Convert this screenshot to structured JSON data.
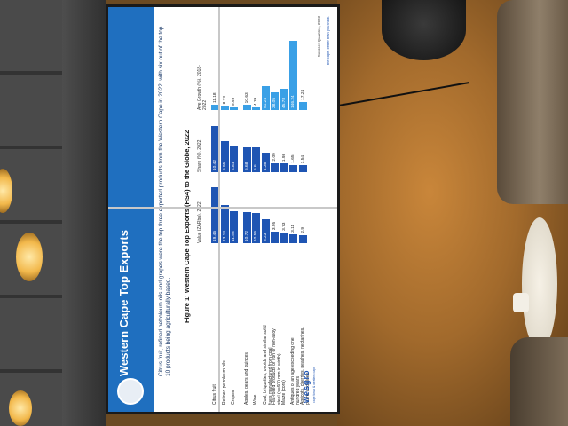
{
  "slide": {
    "title": "Western Cape Top Exports",
    "subtitle": "Citrus fruit, refined petroleum oils and grapes were the top three exported products from the Western Cape in 2022, with six out of the top 10 products being agriculturally based.",
    "figure_title": "Figure 1: Western Cape Top Exports (HS4) to the Globe, 2022",
    "col_value": "Value (ZARbn), 2022",
    "col_share": "Share (%), 2022",
    "col_growth": "Ave Growth (%), 2018-2022",
    "source": "Source: Quantec, 2023",
    "logo": "wesgro",
    "logo_sub": "cape town & western cape",
    "tagline": "the cape. better than you think."
  },
  "chart_data": {
    "type": "table",
    "title": "Figure 1: Western Cape Top Exports (HS4) to the Globe, 2022",
    "rows": [
      {
        "product": "Citrus fruit",
        "value": "19.46",
        "share": "10.42",
        "growth": "11.18"
      },
      {
        "product": "Refined petroleum oils",
        "value": "13.14",
        "share": "6.95",
        "growth": "8.73"
      },
      {
        "product": "Grapes",
        "value": "11.03",
        "share": "5.84",
        "growth": "0.90"
      },
      {
        "product": "Apples, pears and quinces",
        "value": "10.72",
        "share": "5.68",
        "growth": "10.63"
      },
      {
        "product": "Wine",
        "value": "10.56",
        "share": "5.6",
        "growth": "4.39"
      },
      {
        "product": "Coal; briquettes, ovoids and similar solid fuels manufactured from coal",
        "value": "8.23",
        "share": "4.36",
        "growth": "51.24"
      },
      {
        "product": "Flat-rolled products of iron or non-alloy steel (>=600 mm in width)",
        "value": "3.95",
        "share": "2.09",
        "growth": "38.05"
      },
      {
        "product": "Maize (corn)",
        "value": "3.73",
        "share": "1.98",
        "growth": "45.78"
      },
      {
        "product": "Antiques of an age exceeding one hundred years",
        "value": "3.11",
        "share": "1.65",
        "growth": "146.24"
      },
      {
        "product": "Apricots, cherries, peaches, nectarines, plums and sloes",
        "value": "2.9",
        "share": "1.54",
        "growth": "17.24"
      }
    ]
  }
}
